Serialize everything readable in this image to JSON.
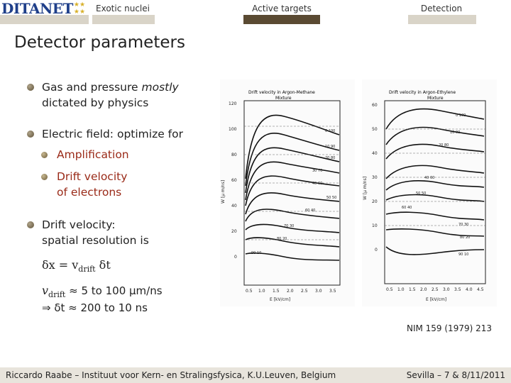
{
  "header": {
    "logo": "DITANET",
    "nav": [
      {
        "label": "Exotic nuclei",
        "active": false
      },
      {
        "label": "Active targets",
        "active": true
      },
      {
        "label": "Detection",
        "active": false
      }
    ]
  },
  "slide": {
    "title": "Detector parameters",
    "bullet1_line1_a": "Gas and pressure ",
    "bullet1_line1_b": "mostly",
    "bullet1_line2": "dictated by physics",
    "bullet2": "Electric field: optimize for",
    "sub1": "Amplification",
    "sub2_line1": "Drift velocity",
    "sub2_line2": "of electrons",
    "bullet3_line1": "Drift velocity:",
    "bullet3_line2": "spatial resolution is",
    "formula1_a": "δx = v",
    "formula1_sub": "drift",
    "formula1_b": " δt",
    "formula2_a": "v",
    "formula2_sub": "drift",
    "formula2_b": " ≈ 5 to 100 μm/ns",
    "formula3": "⇒ δt ≈ 200 to 10 ns"
  },
  "figures": {
    "left": {
      "title_line1": "Drift velocity in Argon-Methane",
      "title_line2": "Mixture",
      "yticks": [
        "120",
        "100",
        "80",
        "60",
        "40",
        "20",
        "0"
      ],
      "xticks": [
        "0.5",
        "1.0",
        "1.5",
        "2.0",
        "2.5",
        "3.0",
        "3.5"
      ],
      "ylabel": "W [μ m/ns]",
      "xlabel": "E [kV/cm]",
      "labels": [
        "0 100",
        "10 90",
        "20 80",
        "30 70",
        "40 60",
        "50 50",
        "60 40",
        "70 30",
        "80 20",
        "90 10"
      ]
    },
    "right": {
      "title_line1": "Drift velocity in Argon-Ethylene",
      "title_line2": "Mixture",
      "yticks": [
        "60",
        "50",
        "40",
        "30",
        "20",
        "10",
        "0"
      ],
      "xticks": [
        "0.5",
        "1.0",
        "1.5",
        "2.0",
        "2.5",
        "3.0",
        "3.5",
        "4.0",
        "4.5"
      ],
      "ylabel": "W [μ m/ns]",
      "xlabel": "E [kV/cm]",
      "labels": [
        "0 100",
        "10 90",
        "20 80",
        "40 60",
        "50 50",
        "60 40",
        "70 30",
        "80 20",
        "90 10"
      ]
    }
  },
  "reference": "NIM 159 (1979) 213",
  "footer": {
    "left": "Riccardo Raabe – Instituut voor Kern- en Stralingsfysica, K.U.Leuven, Belgium",
    "right": "Sevilla – 7 & 8/11/2011"
  }
}
